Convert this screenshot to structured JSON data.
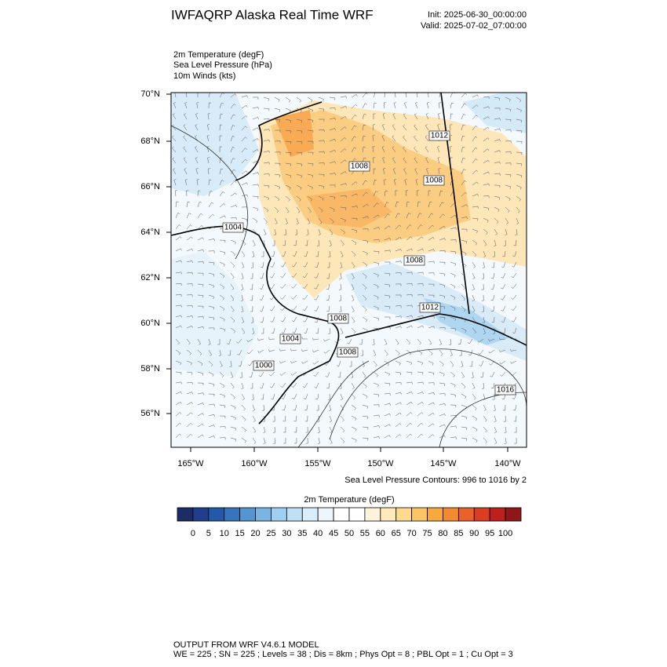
{
  "header": {
    "title": "IWFAQRP Alaska Real Time WRF",
    "init": "Init: 2025-06-30_00:00:00",
    "valid": "Valid: 2025-07-02_07:00:00"
  },
  "fields": [
    "2m Temperature   (degF)",
    "Sea Level Pressure   (hPa)",
    "10m Winds   (kts)"
  ],
  "map": {
    "lat_labels": [
      "70°N",
      "68°N",
      "66°N",
      "64°N",
      "62°N",
      "60°N",
      "58°N",
      "56°N"
    ],
    "lon_labels": [
      "165°W",
      "160°W",
      "155°W",
      "150°W",
      "145°W",
      "140°W"
    ],
    "contour_labels": [
      "1012",
      "1008",
      "1008",
      "1004",
      "1008",
      "1012",
      "1008",
      "1004",
      "1008",
      "1000",
      "1016"
    ],
    "contour_note": "Sea Level Pressure Contours: 996 to 1016 by 2"
  },
  "colorbar": {
    "title": "2m Temperature  (degF)",
    "labels": [
      0,
      5,
      10,
      15,
      20,
      25,
      30,
      35,
      40,
      45,
      50,
      55,
      60,
      65,
      70,
      75,
      80,
      85,
      90,
      95,
      100
    ],
    "colors": [
      "#1b2c66",
      "#1f3f8d",
      "#2459a9",
      "#3675bd",
      "#5596cf",
      "#7ab4e2",
      "#9fd0f1",
      "#bfe0f5",
      "#d9eef9",
      "#ecf6fb",
      "#ffffff",
      "#ffffff",
      "#fff3dc",
      "#feeaba",
      "#fdda8e",
      "#fbc565",
      "#f8a93e",
      "#f48a2e",
      "#e9622a",
      "#d93d24",
      "#bd201f",
      "#8f1717"
    ]
  },
  "footer": [
    "OUTPUT FROM WRF V4.6.1 MODEL",
    "WE = 225 ; SN = 225 ; Levels = 38 ; Dis = 8km ; Phys Opt = 8 ; PBL Opt = 1 ; Cu Opt = 3"
  ]
}
